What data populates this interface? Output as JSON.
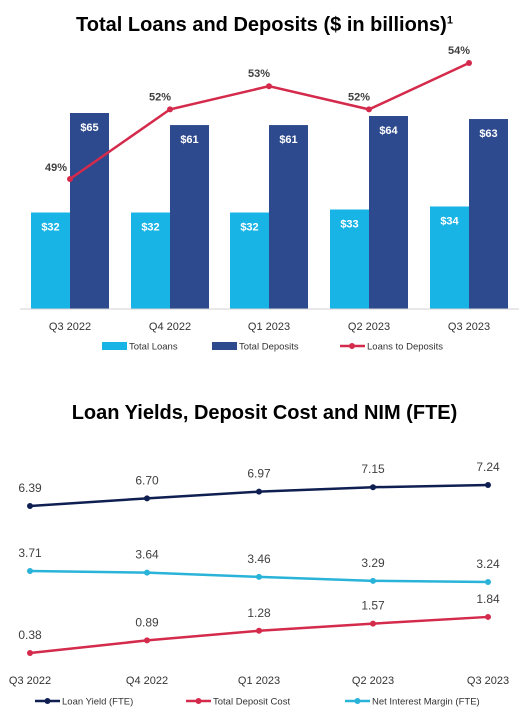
{
  "charts_meta": {
    "chart1_title": "Total Loans and Deposits ($ in billions)",
    "chart1_title_sup": "1",
    "chart2_title": "Loan Yields, Deposit Cost and NIM (FTE)"
  },
  "colors": {
    "total_loans": "#19b4e6",
    "total_deposits": "#2e4a8e",
    "loans_to_deposits": "#d42a4b",
    "loan_yield": "#0f1f52",
    "deposit_cost": "#d42a4b",
    "nim": "#2ab3d8"
  },
  "chart_data": [
    {
      "type": "bar",
      "title": "Total Loans and Deposits ($ in billions)",
      "categories": [
        "Q3 2022",
        "Q4 2022",
        "Q1 2023",
        "Q2 2023",
        "Q3 2023"
      ],
      "series": [
        {
          "name": "Total Loans",
          "values": [
            32,
            32,
            32,
            33,
            34
          ],
          "labels": [
            "$32",
            "$32",
            "$32",
            "$33",
            "$34"
          ]
        },
        {
          "name": "Total Deposits",
          "values": [
            65,
            61,
            61,
            64,
            63
          ],
          "labels": [
            "$65",
            "$61",
            "$61",
            "$64",
            "$63"
          ]
        },
        {
          "name": "Loans to Deposits",
          "type": "line",
          "values": [
            49,
            52,
            53,
            52,
            54
          ],
          "labels": [
            "49%",
            "52%",
            "53%",
            "52%",
            "54%"
          ]
        }
      ],
      "legend_position": "bottom",
      "grid": false
    },
    {
      "type": "line",
      "title": "Loan Yields, Deposit Cost and NIM (FTE)",
      "categories": [
        "Q3 2022",
        "Q4 2022",
        "Q1 2023",
        "Q2 2023",
        "Q3 2023"
      ],
      "series": [
        {
          "name": "Loan Yield (FTE)",
          "values": [
            6.39,
            6.7,
            6.97,
            7.15,
            7.24
          ],
          "labels": [
            "6.39",
            "6.70",
            "6.97",
            "7.15",
            "7.24"
          ]
        },
        {
          "name": "Total Deposit Cost",
          "values": [
            0.38,
            0.89,
            1.28,
            1.57,
            1.84
          ],
          "labels": [
            "0.38",
            "0.89",
            "1.28",
            "1.57",
            "1.84"
          ]
        },
        {
          "name": "Net Interest Margin (FTE)",
          "values": [
            3.71,
            3.64,
            3.46,
            3.29,
            3.24
          ],
          "labels": [
            "3.71",
            "3.64",
            "3.46",
            "3.29",
            "3.24"
          ]
        }
      ],
      "legend_position": "bottom",
      "grid": false
    }
  ]
}
